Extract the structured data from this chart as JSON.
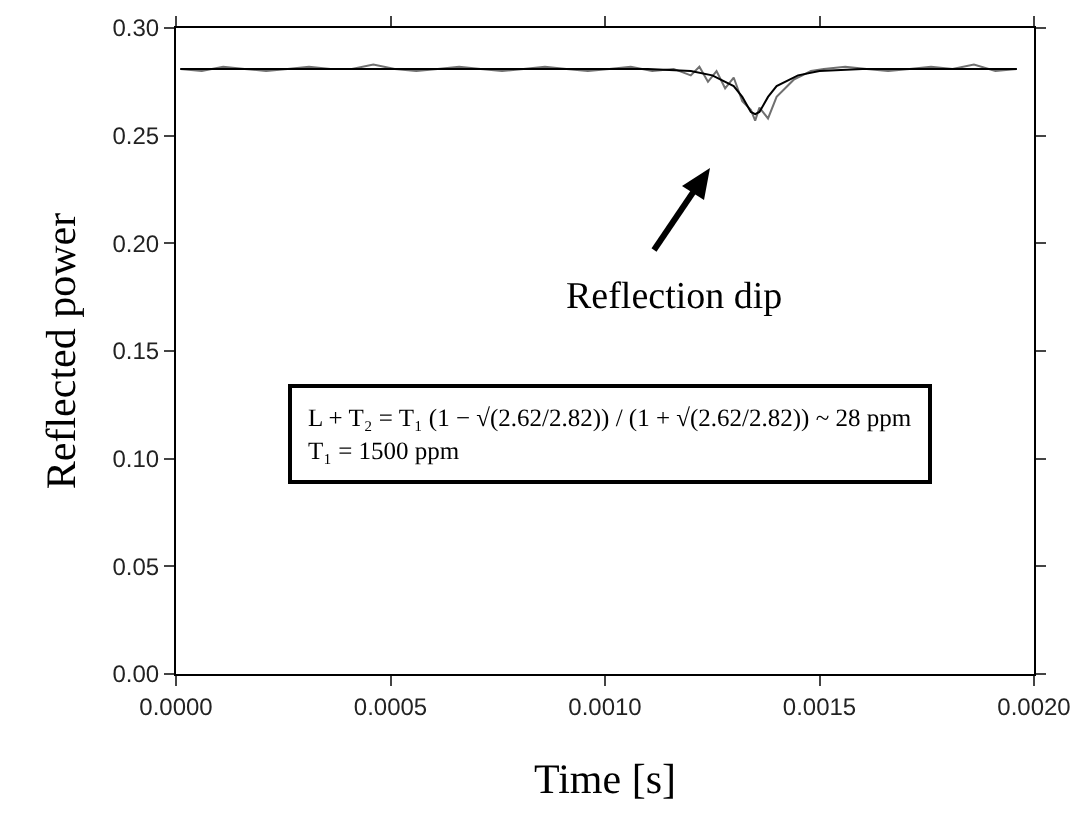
{
  "chart_data": {
    "type": "line",
    "xlabel": "Time [s]",
    "ylabel": "Reflected power",
    "xlim": [
      0,
      0.002
    ],
    "xticks": [
      {
        "value": 0,
        "label": "0.0000"
      },
      {
        "value": 0.0005,
        "label": "0.0005"
      },
      {
        "value": 0.001,
        "label": "0.0010"
      },
      {
        "value": 0.0015,
        "label": "0.0015"
      },
      {
        "value": 0.002,
        "label": "0.0020"
      }
    ],
    "ylim": [
      0,
      0.3
    ],
    "yticks": [
      {
        "value": 0,
        "label": "0.00"
      },
      {
        "value": 0.05,
        "label": "0.05"
      },
      {
        "value": 0.1,
        "label": "0.10"
      },
      {
        "value": 0.15,
        "label": "0.15"
      },
      {
        "value": 0.2,
        "label": "0.20"
      },
      {
        "value": 0.25,
        "label": "0.25"
      },
      {
        "value": 0.3,
        "label": "0.30"
      }
    ],
    "grid": false,
    "legend": false,
    "marker": "none",
    "line_style": "solid",
    "series": [
      {
        "color": "#707070",
        "x": [
          1e-05,
          6e-05,
          0.00011,
          0.00016,
          0.00021,
          0.00026,
          0.00031,
          0.00036,
          0.00041,
          0.00046,
          0.00051,
          0.00056,
          0.00061,
          0.00066,
          0.00071,
          0.00076,
          0.00081,
          0.00086,
          0.00091,
          0.00096,
          0.00101,
          0.00106,
          0.00111,
          0.00116,
          0.0012,
          0.00122,
          0.00124,
          0.00126,
          0.00128,
          0.0013,
          0.00132,
          0.00134,
          0.00135,
          0.00136,
          0.00138,
          0.0014,
          0.00142,
          0.00144,
          0.00146,
          0.00148,
          0.00151,
          0.00156,
          0.00161,
          0.00166,
          0.00171,
          0.00176,
          0.00181,
          0.00186,
          0.00191,
          0.00196
        ],
        "values": [
          0.281,
          0.28,
          0.282,
          0.281,
          0.28,
          0.281,
          0.282,
          0.281,
          0.281,
          0.283,
          0.281,
          0.28,
          0.281,
          0.282,
          0.281,
          0.28,
          0.281,
          0.282,
          0.281,
          0.28,
          0.281,
          0.282,
          0.28,
          0.281,
          0.278,
          0.282,
          0.275,
          0.28,
          0.272,
          0.277,
          0.266,
          0.262,
          0.257,
          0.263,
          0.258,
          0.268,
          0.272,
          0.276,
          0.278,
          0.28,
          0.281,
          0.282,
          0.281,
          0.28,
          0.281,
          0.282,
          0.281,
          0.283,
          0.28,
          0.281
        ]
      },
      {
        "color": "#000000",
        "x": [
          1e-05,
          0.0004,
          0.0008,
          0.0011,
          0.0012,
          0.00125,
          0.0013,
          0.00132,
          0.00134,
          0.00135,
          0.00136,
          0.00138,
          0.0014,
          0.00145,
          0.0015,
          0.0016,
          0.0017,
          0.0018,
          0.00196
        ],
        "values": [
          0.281,
          0.281,
          0.281,
          0.281,
          0.28,
          0.278,
          0.273,
          0.268,
          0.261,
          0.26,
          0.261,
          0.268,
          0.273,
          0.278,
          0.28,
          0.281,
          0.281,
          0.281,
          0.281
        ]
      }
    ],
    "annotations": [
      "Reflection dip",
      "L + T₂ = T₁ (1 − √(2.62/2.82)) / (1 + √(2.62/2.82)) ~ 28 ppm",
      "T₁ = 1500 ppm"
    ]
  }
}
